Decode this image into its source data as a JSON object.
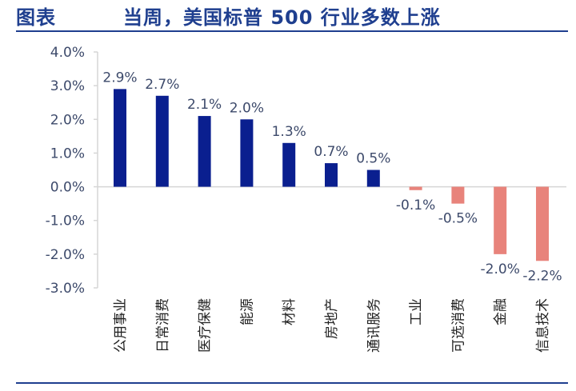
{
  "header": {
    "figure_label": "图表",
    "title": "当周，美国标普 500 行业多数上涨"
  },
  "colors": {
    "positive": "#0a1f8f",
    "negative": "#e8837b",
    "title": "#1f3f8f",
    "axis_text": "#3d4a6b"
  },
  "chart_data": {
    "type": "bar",
    "title": "当周，美国标普 500 行业多数上涨",
    "xlabel": "",
    "ylabel": "",
    "ylim": [
      -3.0,
      4.0
    ],
    "yticks": [
      4.0,
      3.0,
      2.0,
      1.0,
      0.0,
      -1.0,
      -2.0,
      -3.0
    ],
    "ytick_labels": [
      "4.0%",
      "3.0%",
      "2.0%",
      "1.0%",
      "0.0%",
      "-1.0%",
      "-2.0%",
      "-3.0%"
    ],
    "categories": [
      "公用事业",
      "日常消费",
      "医疗保健",
      "能源",
      "材料",
      "房地产",
      "通讯服务",
      "工业",
      "可选消费",
      "金融",
      "信息技术"
    ],
    "values": [
      2.9,
      2.7,
      2.1,
      2.0,
      1.3,
      0.7,
      0.5,
      -0.1,
      -0.5,
      -2.0,
      -2.2
    ],
    "data_labels": [
      "2.9%",
      "2.7%",
      "2.1%",
      "2.0%",
      "1.3%",
      "0.7%",
      "0.5%",
      "-0.1%",
      "-0.5%",
      "-2.0%",
      "-2.2%"
    ],
    "grid": false,
    "legend": "none"
  }
}
